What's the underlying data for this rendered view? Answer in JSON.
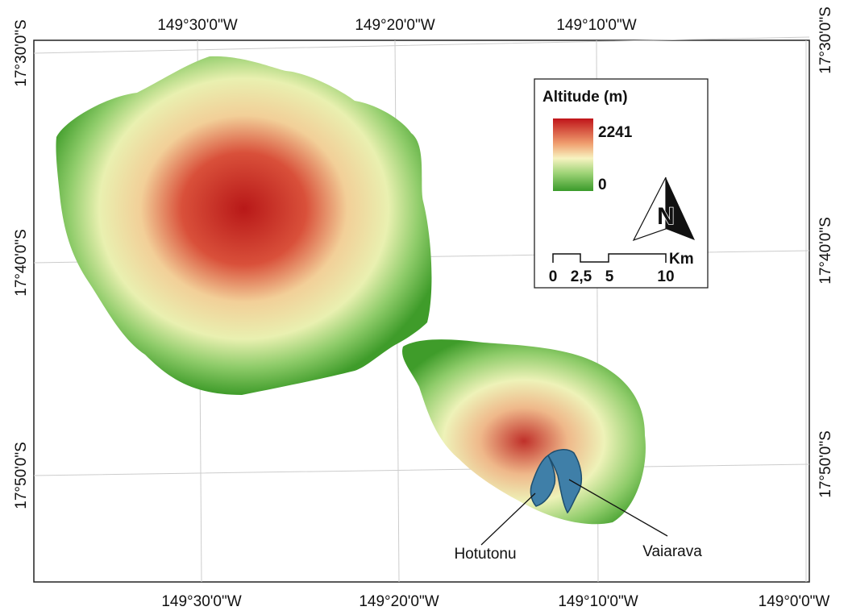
{
  "map": {
    "top_labels": [
      "149°30'0\"W",
      "149°20'0\"W",
      "149°10'0\"W"
    ],
    "bottom_labels": [
      "149°30'0\"W",
      "149°20'0\"W",
      "149°10'0\"W",
      "149°0'0\"W"
    ],
    "left_labels": [
      "17°30'0\"S",
      "17°40'0\"S",
      "17°50'0\"S"
    ],
    "right_labels": [
      "17°30'0\"S",
      "17°40'0\"S",
      "17°50'0\"S"
    ],
    "legend": {
      "title": "Altitude (m)",
      "max": "2241",
      "min": "0"
    },
    "north": "N",
    "scale": {
      "labels": [
        "0",
        "2,5",
        "5",
        "10"
      ],
      "unit": "Km"
    },
    "places": [
      "Hotutonu",
      "Vaiarava"
    ]
  }
}
